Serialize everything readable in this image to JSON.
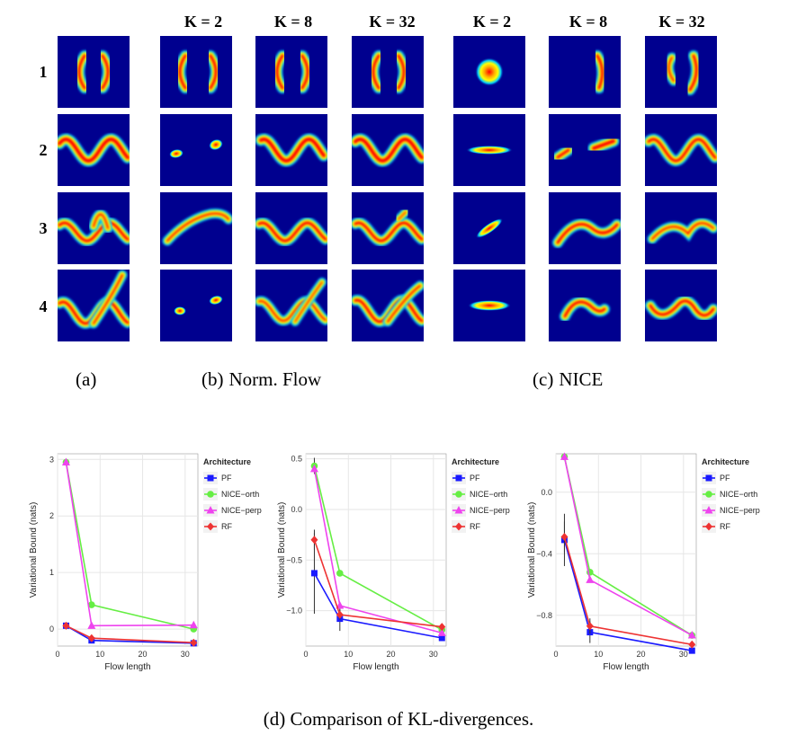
{
  "grid": {
    "col_headers": [
      "K = 2",
      "K = 8",
      "K = 32",
      "K = 2",
      "K = 8",
      "K = 32"
    ],
    "row_labels": [
      "1",
      "2",
      "3",
      "4"
    ],
    "sublabels": [
      {
        "tag": "(a)",
        "text": ""
      },
      {
        "tag": "(b)",
        "text": "Norm. Flow"
      },
      {
        "tag": "(c)",
        "text": "NICE"
      }
    ],
    "colors": {
      "background": "#00008f",
      "low": "#00bfff",
      "mid": "#ffff00",
      "high": "#ff0000"
    }
  },
  "caption": {
    "tag": "(d)",
    "text": "Comparison of KL-divergences."
  },
  "chart_data": [
    {
      "type": "line",
      "xlabel": "Flow length",
      "ylabel": "Variational Bound (nats)",
      "xlim": [
        0,
        33
      ],
      "ylim": [
        -0.3,
        3.1
      ],
      "xticks": [
        0,
        10,
        20,
        30
      ],
      "xtick_labels": [
        "0",
        "10",
        "20",
        "30"
      ],
      "yticks": [
        0,
        1,
        2,
        3
      ],
      "ytick_labels": [
        "0",
        "1",
        "2",
        "3"
      ],
      "grid": true,
      "legend": {
        "title": "Architecture",
        "placement": "top-right"
      },
      "x": [
        2,
        8,
        32
      ],
      "series": [
        {
          "name": "PF",
          "color": "#1a1aff",
          "marker": "square",
          "values": [
            0.06,
            -0.2,
            -0.25
          ],
          "err": [
            0,
            0,
            0
          ]
        },
        {
          "name": "NICE−orth",
          "color": "#66ee44",
          "marker": "circle",
          "values": [
            2.95,
            0.43,
            0.0
          ],
          "err": [
            0,
            0,
            0
          ]
        },
        {
          "name": "NICE−perp",
          "color": "#ee44ee",
          "marker": "triangle",
          "values": [
            2.95,
            0.06,
            0.07
          ],
          "err": [
            0,
            0,
            0
          ]
        },
        {
          "name": "RF",
          "color": "#ee3333",
          "marker": "diamond",
          "values": [
            0.06,
            -0.16,
            -0.24
          ],
          "err": [
            0,
            0,
            0
          ]
        }
      ]
    },
    {
      "type": "line",
      "xlabel": "Flow length",
      "ylabel": "Variational Bound (nats)",
      "xlim": [
        0,
        33
      ],
      "ylim": [
        -1.35,
        0.55
      ],
      "xticks": [
        0,
        10,
        20,
        30
      ],
      "xtick_labels": [
        "0",
        "10",
        "20",
        "30"
      ],
      "yticks": [
        -1.0,
        -0.5,
        0.0,
        0.5
      ],
      "ytick_labels": [
        "−1.0",
        "−0.5",
        "0.0",
        "0.5"
      ],
      "grid": true,
      "legend": {
        "title": "Architecture",
        "placement": "top-right"
      },
      "x": [
        2,
        8,
        32
      ],
      "series": [
        {
          "name": "PF",
          "color": "#1a1aff",
          "marker": "square",
          "values": [
            -0.63,
            -1.08,
            -1.27
          ],
          "err": [
            0.4,
            0.12,
            0
          ]
        },
        {
          "name": "NICE−orth",
          "color": "#66ee44",
          "marker": "circle",
          "values": [
            0.43,
            -0.63,
            -1.19
          ],
          "err": [
            0.08,
            0,
            0
          ]
        },
        {
          "name": "NICE−perp",
          "color": "#ee44ee",
          "marker": "triangle",
          "values": [
            0.4,
            -0.95,
            -1.22
          ],
          "err": [
            0,
            0,
            0
          ]
        },
        {
          "name": "RF",
          "color": "#ee3333",
          "marker": "diamond",
          "values": [
            -0.3,
            -1.04,
            -1.16
          ],
          "err": [
            0.1,
            0.05,
            0
          ]
        }
      ]
    },
    {
      "type": "line",
      "xlabel": "Flow length",
      "ylabel": "Variational Bound (nats)",
      "xlim": [
        0,
        33
      ],
      "ylim": [
        -1.0,
        0.25
      ],
      "xticks": [
        0,
        10,
        20,
        30
      ],
      "xtick_labels": [
        "0",
        "10",
        "20",
        "30"
      ],
      "yticks": [
        -0.8,
        -0.4,
        0.0
      ],
      "ytick_labels": [
        "−0.8",
        "−0.4",
        "0.0"
      ],
      "grid": true,
      "legend": {
        "title": "Architecture",
        "placement": "top-right"
      },
      "x": [
        2,
        8,
        32
      ],
      "series": [
        {
          "name": "PF",
          "color": "#1a1aff",
          "marker": "square",
          "values": [
            -0.31,
            -0.91,
            -1.03
          ],
          "err": [
            0.17,
            0.07,
            0
          ]
        },
        {
          "name": "NICE−orth",
          "color": "#66ee44",
          "marker": "circle",
          "values": [
            0.23,
            -0.52,
            -0.93
          ],
          "err": [
            0,
            0,
            0
          ]
        },
        {
          "name": "NICE−perp",
          "color": "#ee44ee",
          "marker": "triangle",
          "values": [
            0.23,
            -0.57,
            -0.93
          ],
          "err": [
            0,
            0,
            0
          ]
        },
        {
          "name": "RF",
          "color": "#ee3333",
          "marker": "diamond",
          "values": [
            -0.29,
            -0.87,
            -0.99
          ],
          "err": [
            0.1,
            0.05,
            0
          ]
        }
      ]
    }
  ]
}
